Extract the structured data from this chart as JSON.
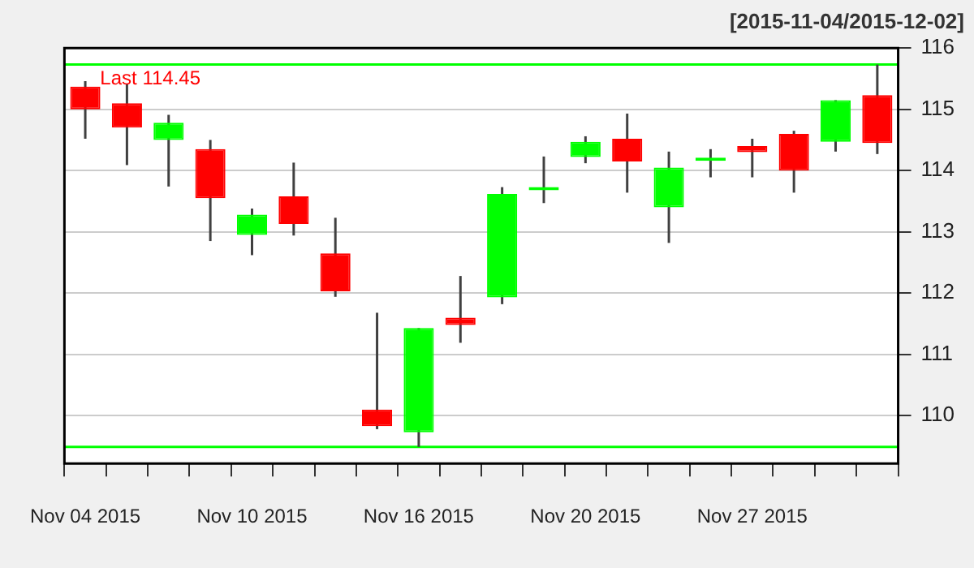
{
  "chart_data": {
    "type": "candlestick",
    "title": "[2015-11-04/2015-12-02]",
    "categories": [
      "Nov 04 2015",
      null,
      null,
      null,
      "Nov 10 2015",
      null,
      null,
      null,
      "Nov 16 2015",
      null,
      null,
      null,
      "Nov 20 2015",
      null,
      null,
      null,
      "Nov 27 2015",
      null,
      null,
      null
    ],
    "ohlc": [
      [
        115.37,
        115.46,
        114.52,
        115.0
      ],
      [
        115.1,
        115.41,
        114.09,
        114.7
      ],
      [
        114.5,
        114.91,
        113.74,
        114.78
      ],
      [
        114.35,
        114.5,
        112.85,
        113.55
      ],
      [
        112.95,
        113.38,
        112.62,
        113.28
      ],
      [
        113.58,
        114.13,
        112.94,
        113.13
      ],
      [
        112.65,
        113.23,
        111.94,
        112.03
      ],
      [
        110.1,
        111.68,
        109.78,
        109.83
      ],
      [
        109.73,
        111.43,
        109.49,
        111.43
      ],
      [
        111.6,
        112.28,
        111.19,
        111.48
      ],
      [
        111.93,
        113.73,
        111.82,
        113.62
      ],
      [
        113.68,
        114.23,
        113.47,
        113.7
      ],
      [
        114.22,
        114.56,
        114.12,
        114.47
      ],
      [
        114.52,
        114.93,
        113.64,
        114.15
      ],
      [
        113.4,
        114.31,
        112.82,
        114.05
      ],
      [
        114.16,
        114.35,
        113.89,
        114.18
      ],
      [
        114.4,
        114.52,
        113.89,
        114.3
      ],
      [
        114.6,
        114.65,
        113.64,
        114.0
      ],
      [
        114.47,
        115.15,
        114.31,
        115.15
      ],
      [
        115.23,
        115.73,
        114.27,
        114.45
      ]
    ],
    "colors": [
      "#ff0000",
      "#ff0000",
      "#00ff00",
      "#ff0000",
      "#00ff00",
      "#ff0000",
      "#ff0000",
      "#ff0000",
      "#00ff00",
      "#ff0000",
      "#00ff00",
      "#00ff00",
      "#00ff00",
      "#ff0000",
      "#00ff00",
      "#00ff00",
      "#ff0000",
      "#ff0000",
      "#00ff00",
      "#ff0000"
    ],
    "ylim": [
      109.22,
      116
    ],
    "yticks": [
      110,
      111,
      112,
      113,
      114,
      115,
      116
    ],
    "grid": "y",
    "legend": false,
    "ref_lines": [
      {
        "axis": "y",
        "value": 115.73,
        "color": "#00ff00"
      },
      {
        "axis": "y",
        "value": 109.49,
        "color": "#00ff00"
      }
    ],
    "annotations": [
      "Last 114.45"
    ]
  }
}
